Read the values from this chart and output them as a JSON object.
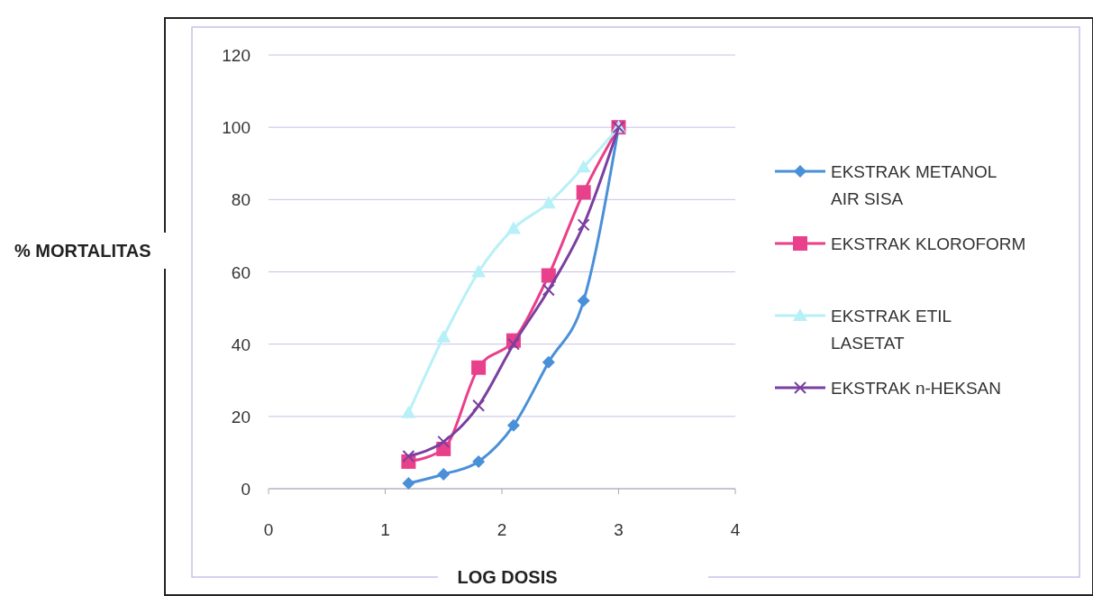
{
  "chart_data": {
    "type": "line",
    "xlabel": "LOG DOSIS",
    "ylabel": "% MORTALITAS",
    "x": [
      1.2,
      1.5,
      1.8,
      2.1,
      2.4,
      2.7,
      3.0
    ],
    "xlim": [
      0,
      4
    ],
    "xticks": [
      0,
      1,
      2,
      3,
      4
    ],
    "ylim": [
      0,
      120
    ],
    "yticks": [
      0,
      20,
      40,
      60,
      80,
      100,
      120
    ],
    "grid": "y",
    "legend": "right",
    "series": [
      {
        "name": "EKSTRAK METANOL AIR SISA",
        "color": "#4a90d9",
        "marker": "diamond",
        "values": [
          1.5,
          4,
          7.5,
          17.5,
          35,
          52,
          100
        ]
      },
      {
        "name": "EKSTRAK KLOROFORM",
        "color": "#e8408a",
        "marker": "square",
        "values": [
          7.5,
          11,
          33.5,
          41,
          59,
          82,
          100
        ]
      },
      {
        "name": "EKSTRAK ETIL LASETAT",
        "color": "#b8f0f8",
        "marker": "triangle",
        "values": [
          21,
          42,
          60,
          72,
          79,
          89,
          100
        ]
      },
      {
        "name": "EKSTRAK n-HEKSAN",
        "color": "#7b3fa0",
        "marker": "cross",
        "values": [
          9,
          13,
          23,
          40,
          55,
          73,
          100
        ]
      }
    ]
  }
}
